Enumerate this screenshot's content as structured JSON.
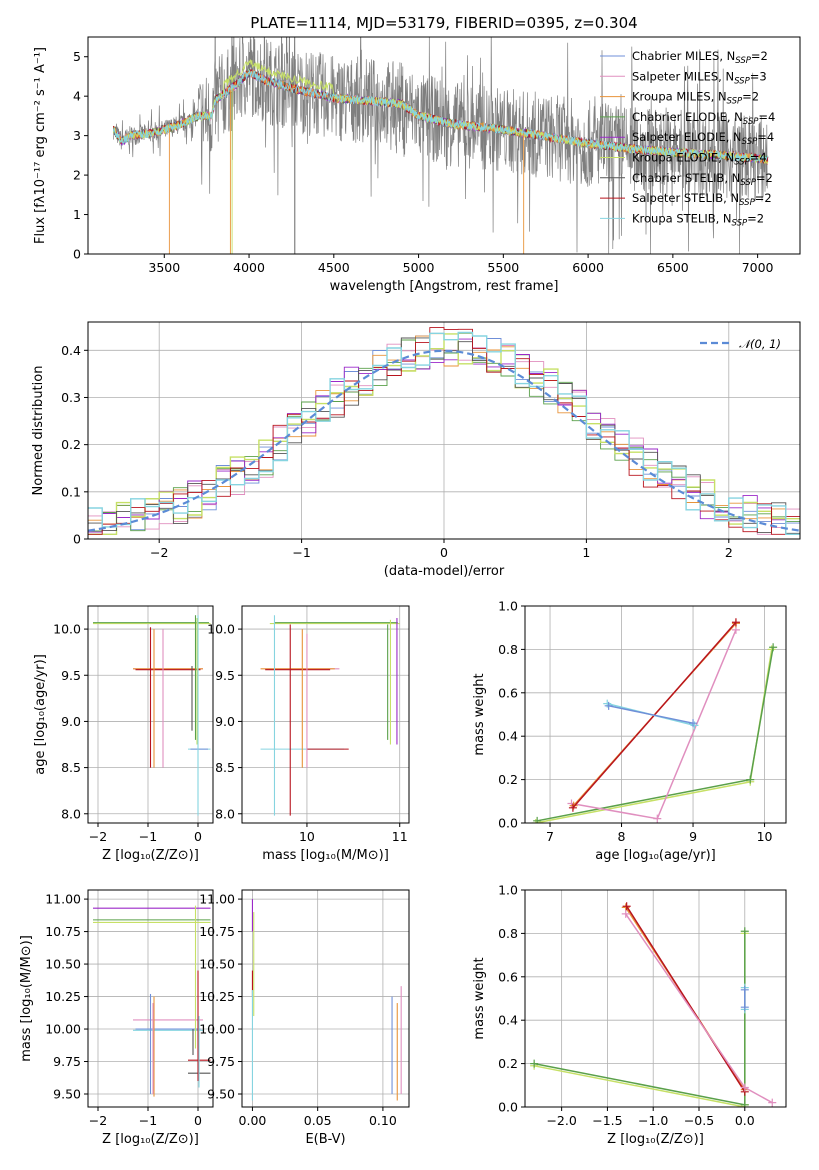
{
  "colors": {
    "Chabrier MILES": "#6f8fd8",
    "Salpeter MILES": "#e08fbf",
    "Kroupa MILES": "#e8933a",
    "Chabrier ELODIE": "#5aa04a",
    "Salpeter ELODIE": "#9b29c9",
    "Kroupa ELODIE": "#c6e066",
    "Chabrier STELIB": "#555555",
    "Salpeter STELIB": "#b8141e",
    "Kroupa STELIB": "#86d4e0",
    "data": "#7f7f7f",
    "gauss": "#5b8bd6"
  },
  "chart_data": [
    {
      "id": "spectrum",
      "type": "line",
      "title": "PLATE=1114, MJD=53179, FIBERID=0395, z=0.304",
      "xlabel": "wavelength [Angstrom, rest frame]",
      "ylabel": "Flux [fλ10⁻¹⁷ erg cm⁻² s⁻¹ A⁻¹]",
      "xlim": [
        3050,
        7250
      ],
      "ylim": [
        0,
        5.5
      ],
      "xticks": [
        3500,
        4000,
        4500,
        5000,
        5500,
        6000,
        6500,
        7000
      ],
      "yticks": [
        0,
        1,
        2,
        3,
        4,
        5
      ],
      "grid": false,
      "legend_position": "top-right",
      "legend": [
        {
          "name": "Chabrier MILES, N",
          "sub": "SSP",
          "tail": "=2"
        },
        {
          "name": "Salpeter MILES, N",
          "sub": "SSP",
          "tail": "=3"
        },
        {
          "name": "Kroupa MILES, N",
          "sub": "SSP",
          "tail": "=2"
        },
        {
          "name": "Chabrier ELODIE, N",
          "sub": "SSP",
          "tail": "=4"
        },
        {
          "name": "Salpeter ELODIE, N",
          "sub": "SSP",
          "tail": "=4"
        },
        {
          "name": "Kroupa ELODIE, N",
          "sub": "SSP",
          "tail": "=4"
        },
        {
          "name": "Chabrier STELIB, N",
          "sub": "SSP",
          "tail": "=2"
        },
        {
          "name": "Salpeter STELIB, N",
          "sub": "SSP",
          "tail": "=2"
        },
        {
          "name": "Kroupa STELIB, N",
          "sub": "SSP",
          "tail": "=2"
        }
      ],
      "data_wavelength_range": [
        3200,
        7060
      ],
      "continuum_x": [
        3200,
        3250,
        3300,
        3400,
        3500,
        3600,
        3700,
        3780,
        3800,
        3900,
        4000,
        4100,
        4300,
        4500,
        4800,
        4900,
        5000,
        5200,
        5500,
        5800,
        6000,
        6300,
        6600,
        6800,
        7050
      ],
      "continuum_y": [
        3.15,
        2.85,
        3.0,
        3.05,
        3.15,
        3.3,
        3.5,
        3.5,
        3.9,
        4.2,
        4.6,
        4.4,
        4.15,
        3.95,
        3.85,
        3.8,
        3.5,
        3.3,
        3.15,
        2.95,
        2.8,
        2.65,
        2.55,
        2.5,
        2.4
      ]
    },
    {
      "id": "residuals",
      "type": "line",
      "xlabel": "(data-model)/error",
      "ylabel": "Normed distribution",
      "xlim": [
        -2.5,
        2.5
      ],
      "ylim": [
        0,
        0.46
      ],
      "xticks": [
        -2,
        -1,
        0,
        1,
        2
      ],
      "yticks": [
        0.0,
        0.1,
        0.2,
        0.3,
        0.4
      ],
      "grid": true,
      "legend_position": "top-right",
      "legend": [
        {
          "name": "𝒩(0, 1)"
        }
      ],
      "gaussian": {
        "mean": 0,
        "sigma": 1
      }
    },
    {
      "id": "age_vs_Z",
      "type": "scatter",
      "xlabel": "Z [log₁₀(Z/Z⊙)]",
      "ylabel": "age  [log₁₀(age/yr)]",
      "xlim": [
        -2.2,
        0.3
      ],
      "ylim": [
        7.9,
        10.25
      ],
      "xticks": [
        -2,
        -1,
        0
      ],
      "yticks": [
        8.0,
        8.5,
        9.0,
        9.5,
        10.0
      ],
      "grid": true,
      "hbars": [
        {
          "series": "Kroupa ELODIE",
          "y": 10.06,
          "x0": -2.1,
          "x1": 0.25
        },
        {
          "series": "Chabrier ELODIE",
          "y": 10.07,
          "x0": -2.1,
          "x1": 0.22
        },
        {
          "series": "Salpeter MILES",
          "y": 9.57,
          "x0": -1.3,
          "x1": 0.1
        },
        {
          "series": "Kroupa MILES",
          "y": 9.57,
          "x0": -1.3,
          "x1": 0.1
        },
        {
          "series": "Salpeter STELIB",
          "y": 9.56,
          "x0": -1.25,
          "x1": 0.05
        },
        {
          "series": "Kroupa STELIB",
          "y": 8.7,
          "x0": -0.2,
          "x1": 0.25
        },
        {
          "series": "Chabrier MILES",
          "y": 8.7,
          "x0": -0.15,
          "x1": 0.2
        }
      ],
      "vbars": [
        {
          "series": "Salpeter STELIB",
          "x": -0.95,
          "y0": 8.5,
          "y1": 10.02
        },
        {
          "series": "Kroupa MILES",
          "x": -0.88,
          "y0": 8.5,
          "y1": 10.0
        },
        {
          "series": "Salpeter MILES",
          "x": -0.7,
          "y0": 8.5,
          "y1": 10.0
        },
        {
          "series": "Chabrier ELODIE",
          "x": -0.05,
          "y0": 8.8,
          "y1": 10.15
        },
        {
          "series": "Kroupa ELODIE",
          "x": -0.02,
          "y0": 8.75,
          "y1": 10.12
        },
        {
          "series": "Kroupa STELIB",
          "x": 0.0,
          "y0": 7.98,
          "y1": 10.15
        },
        {
          "series": "Chabrier STELIB",
          "x": -0.12,
          "y0": 8.9,
          "y1": 9.6
        }
      ]
    },
    {
      "id": "age_vs_mass",
      "type": "scatter",
      "xlabel": "mass [log₁₀(M/M⊙)]",
      "ylabel": "",
      "xlim": [
        9.3,
        11.1
      ],
      "ylim": [
        7.9,
        10.25
      ],
      "xticks": [
        10,
        11
      ],
      "yticks": [
        8.0,
        8.5,
        9.0,
        9.5,
        10.0
      ],
      "grid": true,
      "hbars": [
        {
          "series": "Kroupa ELODIE",
          "y": 10.06,
          "x0": 9.6,
          "x1": 11.0
        },
        {
          "series": "Chabrier ELODIE",
          "y": 10.07,
          "x0": 9.65,
          "x1": 10.98
        },
        {
          "series": "Salpeter MILES",
          "y": 9.57,
          "x0": 9.55,
          "x1": 10.35
        },
        {
          "series": "Kroupa MILES",
          "y": 9.57,
          "x0": 9.5,
          "x1": 10.3
        },
        {
          "series": "Salpeter STELIB",
          "y": 9.56,
          "x0": 9.55,
          "x1": 10.25
        },
        {
          "series": "Kroupa STELIB",
          "y": 8.7,
          "x0": 9.5,
          "x1": 10.4
        },
        {
          "series": "Salpeter STELIB",
          "y": 8.7,
          "x0": 10.0,
          "x1": 10.45
        }
      ],
      "vbars": [
        {
          "series": "Kroupa STELIB",
          "x": 9.65,
          "y0": 7.98,
          "y1": 10.15
        },
        {
          "series": "Salpeter STELIB",
          "x": 9.82,
          "y0": 7.98,
          "y1": 10.05
        },
        {
          "series": "Kroupa MILES",
          "x": 9.95,
          "y0": 8.5,
          "y1": 10.0
        },
        {
          "series": "Salpeter MILES",
          "x": 10.0,
          "y0": 8.5,
          "y1": 9.95
        },
        {
          "series": "Chabrier ELODIE",
          "x": 10.87,
          "y0": 8.8,
          "y1": 10.05
        },
        {
          "series": "Kroupa ELODIE",
          "x": 10.9,
          "y0": 8.75,
          "y1": 10.1
        },
        {
          "series": "Salpeter ELODIE",
          "x": 10.97,
          "y0": 8.75,
          "y1": 10.12
        }
      ]
    },
    {
      "id": "weight_vs_age",
      "type": "line",
      "xlabel": "age  [log₁₀(age/yr)]",
      "ylabel": "mass weight",
      "xlim": [
        6.65,
        10.3
      ],
      "ylim": [
        0,
        1.0
      ],
      "xticks": [
        7,
        8,
        9,
        10
      ],
      "yticks": [
        0.0,
        0.2,
        0.4,
        0.6,
        0.8,
        1.0
      ],
      "grid": true,
      "series": [
        {
          "color_key": "Kroupa ELODIE",
          "x": [
            6.8,
            9.8,
            10.1
          ],
          "y": [
            0.0,
            0.19,
            0.8
          ]
        },
        {
          "color_key": "Chabrier ELODIE",
          "x": [
            6.82,
            9.8,
            10.12
          ],
          "y": [
            0.01,
            0.2,
            0.81
          ]
        },
        {
          "color_key": "Salpeter MILES",
          "x": [
            7.3,
            8.5,
            9.6
          ],
          "y": [
            0.09,
            0.02,
            0.89
          ]
        },
        {
          "color_key": "Kroupa MILES",
          "x": [
            7.33,
            9.6
          ],
          "y": [
            0.08,
            0.92
          ]
        },
        {
          "color_key": "Salpeter STELIB",
          "x": [
            7.32,
            9.6
          ],
          "y": [
            0.07,
            0.925
          ]
        },
        {
          "color_key": "Kroupa STELIB",
          "x": [
            7.8,
            9.02
          ],
          "y": [
            0.55,
            0.45
          ]
        },
        {
          "color_key": "Chabrier MILES",
          "x": [
            7.82,
            9.0
          ],
          "y": [
            0.54,
            0.46
          ]
        }
      ]
    },
    {
      "id": "mass_vs_Z",
      "type": "scatter",
      "xlabel": "Z [log₁₀(Z/Z⊙)]",
      "ylabel": "mass [log₁₀(M/M⊙)]",
      "xlim": [
        -2.2,
        0.3
      ],
      "ylim": [
        9.4,
        11.07
      ],
      "xticks": [
        -2,
        -1,
        0
      ],
      "yticks": [
        9.5,
        9.75,
        10.0,
        10.25,
        10.5,
        10.75,
        11.0
      ],
      "grid": true,
      "hbars": [
        {
          "series": "Salpeter ELODIE",
          "y": 10.93,
          "x0": -2.1,
          "x1": 0.25
        },
        {
          "series": "Chabrier ELODIE",
          "y": 10.84,
          "x0": -2.1,
          "x1": 0.25
        },
        {
          "series": "Kroupa ELODIE",
          "y": 10.82,
          "x0": -2.1,
          "x1": 0.25
        },
        {
          "series": "Salpeter MILES",
          "y": 10.07,
          "x0": -1.3,
          "x1": 0.1
        },
        {
          "series": "Chabrier MILES",
          "y": 10.0,
          "x0": -1.25,
          "x1": 0.05
        },
        {
          "series": "Kroupa STELIB",
          "y": 9.99,
          "x0": -1.3,
          "x1": 0.1
        },
        {
          "series": "Salpeter STELIB",
          "y": 9.76,
          "x0": -0.2,
          "x1": 0.25
        },
        {
          "series": "Chabrier STELIB",
          "y": 9.66,
          "x0": -0.2,
          "x1": 0.25
        }
      ],
      "vbars": [
        {
          "series": "Chabrier MILES",
          "x": -0.95,
          "y0": 9.5,
          "y1": 10.27
        },
        {
          "series": "Kroupa MILES",
          "x": -0.88,
          "y0": 9.48,
          "y1": 10.25
        },
        {
          "series": "Salpeter MILES",
          "x": -0.9,
          "y0": 9.5,
          "y1": 10.2
        },
        {
          "series": "Kroupa ELODIE",
          "x": -0.05,
          "y0": 9.85,
          "y1": 10.95
        },
        {
          "series": "Salpeter STELIB",
          "x": 0.0,
          "y0": 9.6,
          "y1": 10.45
        },
        {
          "series": "Kroupa STELIB",
          "x": 0.02,
          "y0": 9.55,
          "y1": 10.1
        },
        {
          "series": "Chabrier STELIB",
          "x": -0.1,
          "y0": 9.8,
          "y1": 10.0
        }
      ]
    },
    {
      "id": "mass_vs_ebv",
      "type": "scatter",
      "xlabel": "E(B-V)",
      "ylabel": "",
      "xlim": [
        -0.008,
        0.12
      ],
      "ylim": [
        9.4,
        11.07
      ],
      "xticks": [
        0.0,
        0.05,
        0.1
      ],
      "xtick_labels": [
        "0.00",
        "0.05",
        "0.10"
      ],
      "yticks": [
        9.5,
        9.75,
        10.0,
        10.25,
        10.5,
        10.75,
        11.0
      ],
      "grid": true,
      "vbars": [
        {
          "series": "Salpeter ELODIE",
          "x": 0.0,
          "y0": 10.75,
          "y1": 11.0
        },
        {
          "series": "Kroupa ELODIE",
          "x": 0.001,
          "y0": 10.1,
          "y1": 10.9
        },
        {
          "series": "Salpeter STELIB",
          "x": 0.0,
          "y0": 10.25,
          "y1": 10.45
        },
        {
          "series": "Kroupa STELIB",
          "x": 0.0,
          "y0": 9.45,
          "y1": 10.3
        },
        {
          "series": "Chabrier MILES",
          "x": 0.107,
          "y0": 9.5,
          "y1": 10.25
        },
        {
          "series": "Kroupa MILES",
          "x": 0.111,
          "y0": 9.45,
          "y1": 10.2
        },
        {
          "series": "Salpeter MILES",
          "x": 0.114,
          "y0": 9.5,
          "y1": 10.33
        }
      ]
    },
    {
      "id": "weight_vs_Z",
      "type": "line",
      "xlabel": "Z [log₁₀(Z/Z⊙)]",
      "ylabel": "mass weight",
      "xlim": [
        -2.4,
        0.45
      ],
      "ylim": [
        0,
        1.0
      ],
      "xticks": [
        -2.0,
        -1.5,
        -1.0,
        -0.5,
        0.0
      ],
      "yticks": [
        0.0,
        0.2,
        0.4,
        0.6,
        0.8,
        1.0
      ],
      "grid": true,
      "series": [
        {
          "color_key": "Kroupa ELODIE",
          "x": [
            -2.3,
            0.0,
            0.0,
            0.0
          ],
          "y": [
            0.19,
            0.0,
            0.8,
            0.01
          ]
        },
        {
          "color_key": "Chabrier ELODIE",
          "x": [
            -2.3,
            0.0,
            0.0
          ],
          "y": [
            0.2,
            0.01,
            0.81
          ]
        },
        {
          "color_key": "Kroupa MILES",
          "x": [
            -1.3,
            0.0
          ],
          "y": [
            0.92,
            0.08
          ]
        },
        {
          "color_key": "Salpeter STELIB",
          "x": [
            -1.29,
            0.0
          ],
          "y": [
            0.925,
            0.07
          ]
        },
        {
          "color_key": "Salpeter MILES",
          "x": [
            -1.3,
            0.0,
            0.3
          ],
          "y": [
            0.89,
            0.09,
            0.02
          ]
        },
        {
          "color_key": "Kroupa STELIB",
          "x": [
            0.0,
            0.0
          ],
          "y": [
            0.55,
            0.45
          ]
        },
        {
          "color_key": "Chabrier MILES",
          "x": [
            0.0,
            0.0
          ],
          "y": [
            0.54,
            0.46
          ]
        }
      ]
    }
  ]
}
